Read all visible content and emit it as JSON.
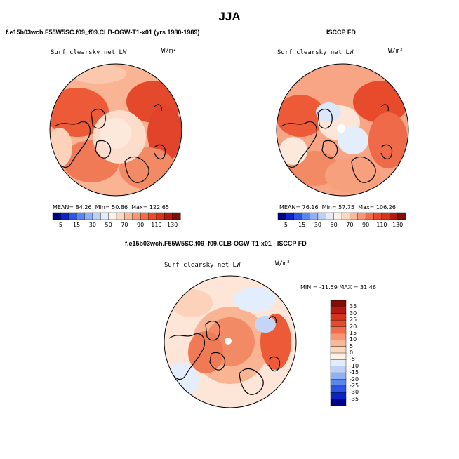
{
  "figure": {
    "title": "JJA",
    "units": "W/m²",
    "variable": "Surf clearsky net LW"
  },
  "panels": [
    {
      "id": "model",
      "header": "f.e15b03wch.F55W5SC.f09_f09.CLB-OGW-T1-x01 (yrs 1980-1989)",
      "subtitle": "Surf clearsky net LW",
      "units": "W/m²",
      "stats": {
        "mean_label": "MEAN=",
        "mean": "84.26",
        "min_label": "Min=",
        "min": "50.86",
        "max_label": "Max=",
        "max": "122.65"
      }
    },
    {
      "id": "obs",
      "header": "ISCCP FD",
      "subtitle": "Surf clearsky net LW",
      "units": "W/m²",
      "stats": {
        "mean_label": "MEAN=",
        "mean": "76.16",
        "min_label": "Min=",
        "min": "57.75",
        "max_label": "Max=",
        "max": "106.26"
      }
    },
    {
      "id": "diff",
      "header": "f.e15b03wch.F55W5SC.f09_f09.CLB-OGW-T1-x01 - ISCCP FD",
      "subtitle": "Surf clearsky net LW",
      "units": "W/m²",
      "stats_line": "MIN = -11.59  MAX =  31.46"
    }
  ],
  "colorbar_abs": {
    "labels": [
      "5",
      "15",
      "30",
      "50",
      "70",
      "90",
      "110",
      "130"
    ],
    "colors": [
      "#00008b",
      "#0a24c8",
      "#2a55e6",
      "#5a86f0",
      "#8fb0f5",
      "#bcd0f8",
      "#e2ecfb",
      "#fdf0e6",
      "#fdd7c0",
      "#fbb899",
      "#f79574",
      "#f06e4c",
      "#e84a2c",
      "#d5341a",
      "#b41b0e",
      "#7d0f06"
    ]
  },
  "colorbar_diff": {
    "labels": [
      "35",
      "30",
      "25",
      "20",
      "15",
      "10",
      "5",
      "0",
      "-5",
      "-10",
      "-15",
      "-20",
      "-25",
      "-30",
      "-35"
    ],
    "colors": [
      "#7d0f06",
      "#b41b0e",
      "#d5341a",
      "#e84a2c",
      "#f06e4c",
      "#f79574",
      "#fbb899",
      "#fdd7c0",
      "#fdf0e6",
      "#e2ecfb",
      "#bcd0f8",
      "#8fb0f5",
      "#5a86f0",
      "#2a55e6",
      "#0a24c8",
      "#00008b"
    ]
  }
}
